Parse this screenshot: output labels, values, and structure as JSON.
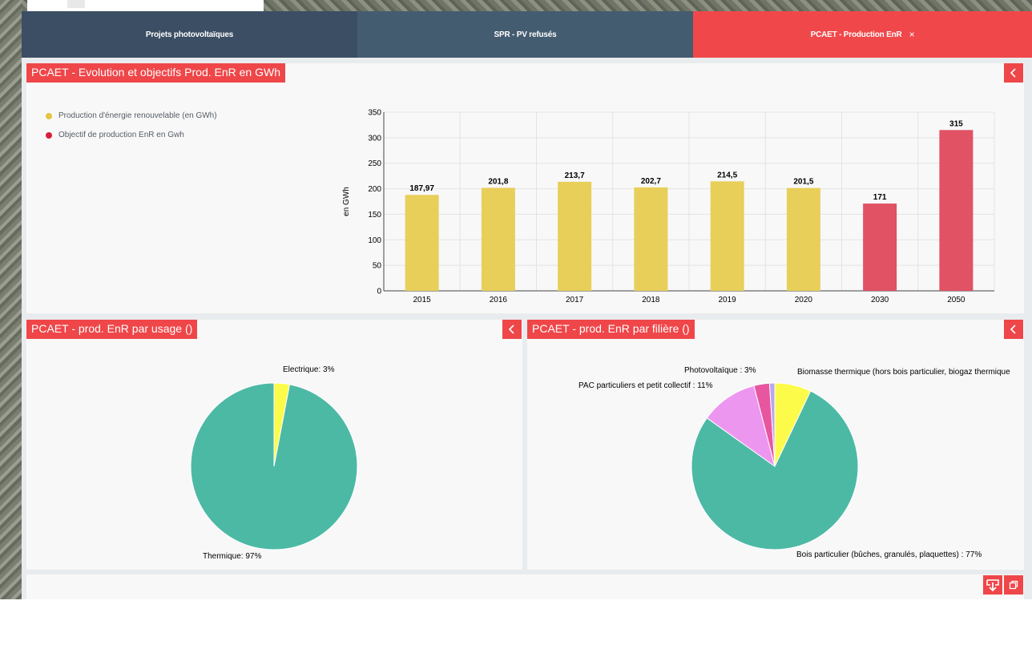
{
  "tabs": [
    {
      "label": "Projets photovoltaïques"
    },
    {
      "label": "SPR - PV refusés"
    },
    {
      "label": "PCAET - Production EnR",
      "close": "×"
    }
  ],
  "cards": {
    "evolution": {
      "title": "PCAET - Evolution et objectifs Prod. EnR en GWh"
    },
    "usage": {
      "title": "PCAET - prod. EnR par usage ()"
    },
    "filiere": {
      "title": "PCAET - prod. EnR par filière ()"
    }
  },
  "colors": {
    "production": "#e8cf5a",
    "objectif": "#e05264",
    "thermique": "#4cb9a5",
    "electrique": "#fcfb4a",
    "bois": "#4cb9a5",
    "pac": "#ed96ef",
    "pv": "#e8569f",
    "biomasse": "#fcfb4a",
    "other": "#b7a6ef",
    "accent": "#ef4649"
  },
  "chart_data": [
    {
      "type": "bar",
      "categories": [
        "2015",
        "2016",
        "2017",
        "2018",
        "2019",
        "2020",
        "2030",
        "2050"
      ],
      "series": [
        {
          "name": "Production d'énergie renouvelable (en GWh)",
          "values": [
            187.97,
            201.8,
            213.7,
            202.7,
            214.5,
            201.5,
            null,
            null
          ],
          "labels": [
            "187,97",
            "201,8",
            "213,7",
            "202,7",
            "214,5",
            "201,5",
            "",
            ""
          ]
        },
        {
          "name": "Objectif de production EnR en Gwh",
          "values": [
            null,
            null,
            null,
            null,
            null,
            null,
            171,
            315
          ],
          "labels": [
            "",
            "",
            "",
            "",
            "",
            "",
            "171",
            "315"
          ]
        }
      ],
      "ylabel": "en GWh",
      "ylim": [
        0,
        350
      ],
      "yticks": [
        "0",
        "50",
        "100",
        "150",
        "200",
        "250",
        "300",
        "350"
      ],
      "grid": true,
      "legend": "left"
    },
    {
      "type": "pie",
      "slices": [
        {
          "label": "Electrique: 3%",
          "value": 3
        },
        {
          "label": "Thermique: 97%",
          "value": 97
        }
      ]
    },
    {
      "type": "pie",
      "slices": [
        {
          "label": "Biomasse thermique (hors bois particulier, biogaz thermique",
          "value": 7
        },
        {
          "label": "Bois particulier (bûches, granulés, plaquettes) : 77%",
          "value": 77
        },
        {
          "label": "PAC particuliers et petit collectif : 11%",
          "value": 11
        },
        {
          "label": "Photovoltaïque : 3%",
          "value": 3
        },
        {
          "label": "",
          "value": 1
        }
      ]
    }
  ]
}
